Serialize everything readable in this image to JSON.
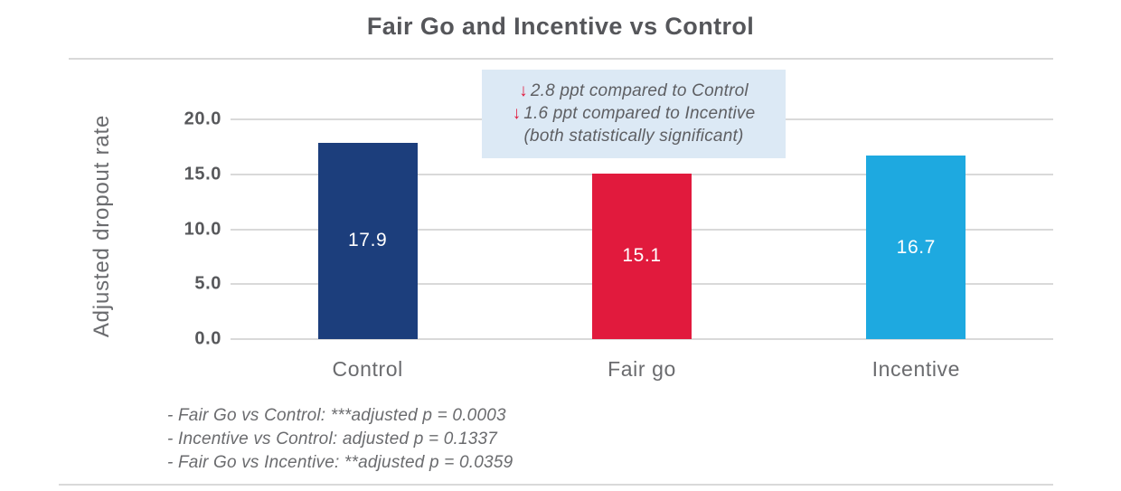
{
  "chart_data": {
    "type": "bar",
    "title": "Fair Go and Incentive vs Control",
    "xlabel": "",
    "ylabel": "Adjusted dropout rate",
    "ylim": [
      0,
      20
    ],
    "yticks": [
      0.0,
      5.0,
      10.0,
      15.0,
      20.0
    ],
    "ytick_labels": [
      "0.0",
      "5.0",
      "10.0",
      "15.0",
      "20.0"
    ],
    "categories": [
      "Control",
      "Fair go",
      "Incentive"
    ],
    "values": [
      17.9,
      15.1,
      16.7
    ],
    "value_labels": [
      "17.9",
      "15.1",
      "16.7"
    ],
    "bar_colors": [
      "#1c3e7c",
      "#e11a3d",
      "#1ea9e0"
    ],
    "grid": true,
    "legend": false
  },
  "annotation": {
    "background": "#dce9f5",
    "arrow_color": "#e11a3d",
    "arrow_glyph": "↓",
    "lines": [
      {
        "arrow": true,
        "text": "2.8 ppt compared to Control"
      },
      {
        "arrow": true,
        "text": "1.6 ppt compared to Incentive"
      },
      {
        "arrow": false,
        "text": "(both statistically significant)"
      }
    ]
  },
  "footnotes": [
    "- Fair Go vs Control: ***adjusted p = 0.0003",
    "- Incentive vs Control: adjusted p = 0.1337",
    "- Fair Go vs Incentive: **adjusted p = 0.0359"
  ],
  "colors": {
    "title_text": "#55565a",
    "axis_text": "#6a6b6e",
    "tick_text": "#57585b",
    "gridline": "#d9d9d9",
    "divider": "#d9d9d9",
    "bar_value_text": "#ffffff"
  }
}
